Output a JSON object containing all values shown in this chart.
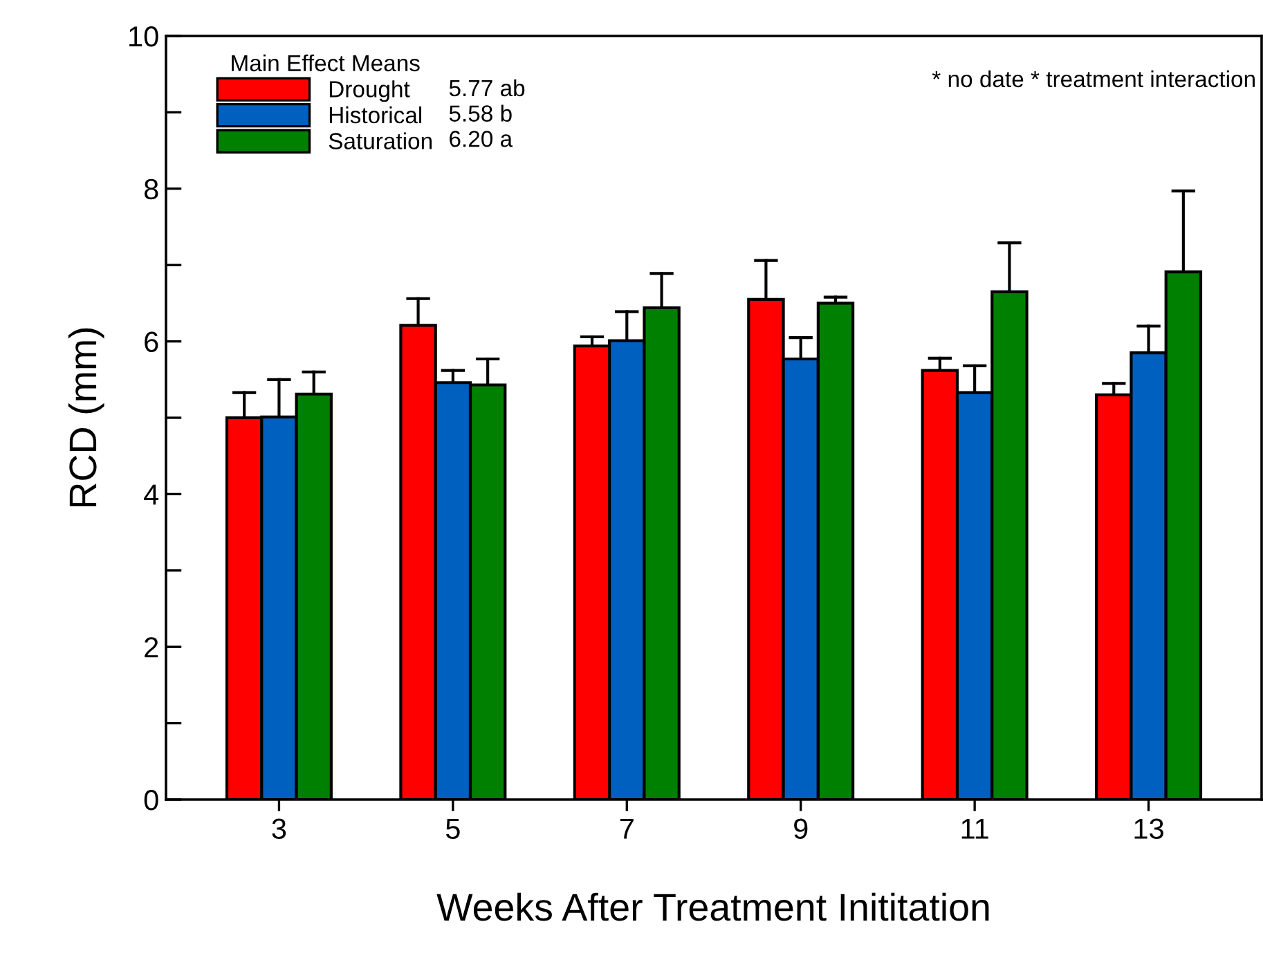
{
  "chart_data": {
    "type": "bar",
    "xlabel": "Weeks After Treatment Inititation",
    "ylabel": "RCD (mm)",
    "legend_title": "Main Effect Means",
    "legend": "top left",
    "categories": [
      "3",
      "5",
      "7",
      "9",
      "11",
      "13"
    ],
    "series": [
      {
        "name": "Drought",
        "color": "#ff0000",
        "values": [
          5.0,
          6.21,
          5.94,
          6.55,
          5.62,
          5.3
        ],
        "errors": [
          [
            5.0,
            5.33
          ],
          [
            6.21,
            6.56
          ],
          [
            5.94,
            6.06
          ],
          [
            6.55,
            7.06
          ],
          [
            5.62,
            5.78
          ],
          [
            5.3,
            5.45
          ]
        ]
      },
      {
        "name": "Historical",
        "color": "#0060c0",
        "values": [
          5.01,
          5.46,
          6.01,
          5.77,
          5.33,
          5.85
        ],
        "errors": [
          [
            5.01,
            5.5
          ],
          [
            5.46,
            5.62
          ],
          [
            6.01,
            6.39
          ],
          [
            5.77,
            6.05
          ],
          [
            5.33,
            5.68
          ],
          [
            5.85,
            6.2
          ]
        ]
      },
      {
        "name": "Saturation",
        "color": "#008000",
        "values": [
          5.31,
          5.43,
          6.44,
          6.5,
          6.65,
          6.91
        ],
        "errors": [
          [
            5.31,
            5.6
          ],
          [
            5.43,
            5.77
          ],
          [
            6.44,
            6.89
          ],
          [
            6.5,
            6.58
          ],
          [
            6.65,
            7.29
          ],
          [
            6.91,
            7.97
          ]
        ]
      }
    ],
    "ylim": [
      0,
      10
    ],
    "yticks": [
      0,
      {
        "value": 1,
        "label": null
      },
      2,
      {
        "value": 3,
        "label": null
      },
      4,
      {
        "value": 5,
        "label": null
      },
      6,
      {
        "value": 7,
        "label": null
      },
      8,
      {
        "value": 9,
        "label": null
      },
      10
    ],
    "grid": false,
    "annotations": [
      "* no date * treatment interaction",
      "5.77 ab",
      "5.58 b",
      "6.20 a"
    ]
  }
}
